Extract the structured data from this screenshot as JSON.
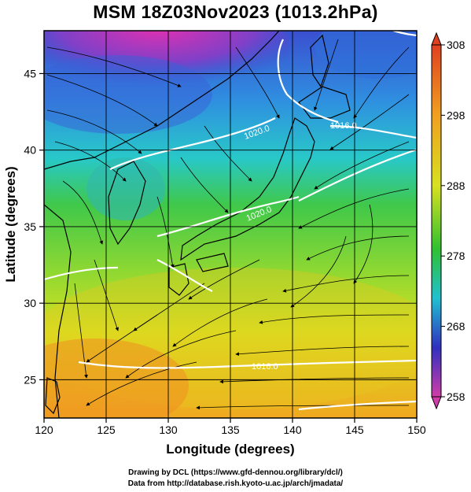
{
  "title": "MSM 18Z03Nov2023 (1013.2hPa)",
  "map": {
    "lon_range": [
      120,
      150
    ],
    "lat_range": [
      22.5,
      47.8
    ],
    "x_ticks": [
      "120",
      "125",
      "130",
      "135",
      "140",
      "145",
      "150"
    ],
    "y_ticks": [
      "25",
      "30",
      "35",
      "40",
      "45"
    ],
    "xlabel": "Longitude (degrees)",
    "ylabel": "Latitude (degrees)",
    "gridlines": true,
    "grid_spacing_deg": 5
  },
  "colorbar": {
    "min": 258,
    "max": 308,
    "ticks": [
      "308",
      "298",
      "288",
      "278",
      "268",
      "258"
    ],
    "stops": [
      "#d03ca8",
      "#3030c0",
      "#20c0d0",
      "#30c030",
      "#d8e020",
      "#f0a020",
      "#e04020"
    ]
  },
  "contours": [
    {
      "label": "1020.0"
    },
    {
      "label": "1016.0"
    },
    {
      "label": "1020.0"
    },
    {
      "label": "1016.0"
    }
  ],
  "credits": {
    "line1": "Drawing by DCL (https://www.gfd-dennou.org/library/dcl/)",
    "line2": "Data from http://database.rish.kyoto-u.ac.jp/arch/jmadata/"
  }
}
